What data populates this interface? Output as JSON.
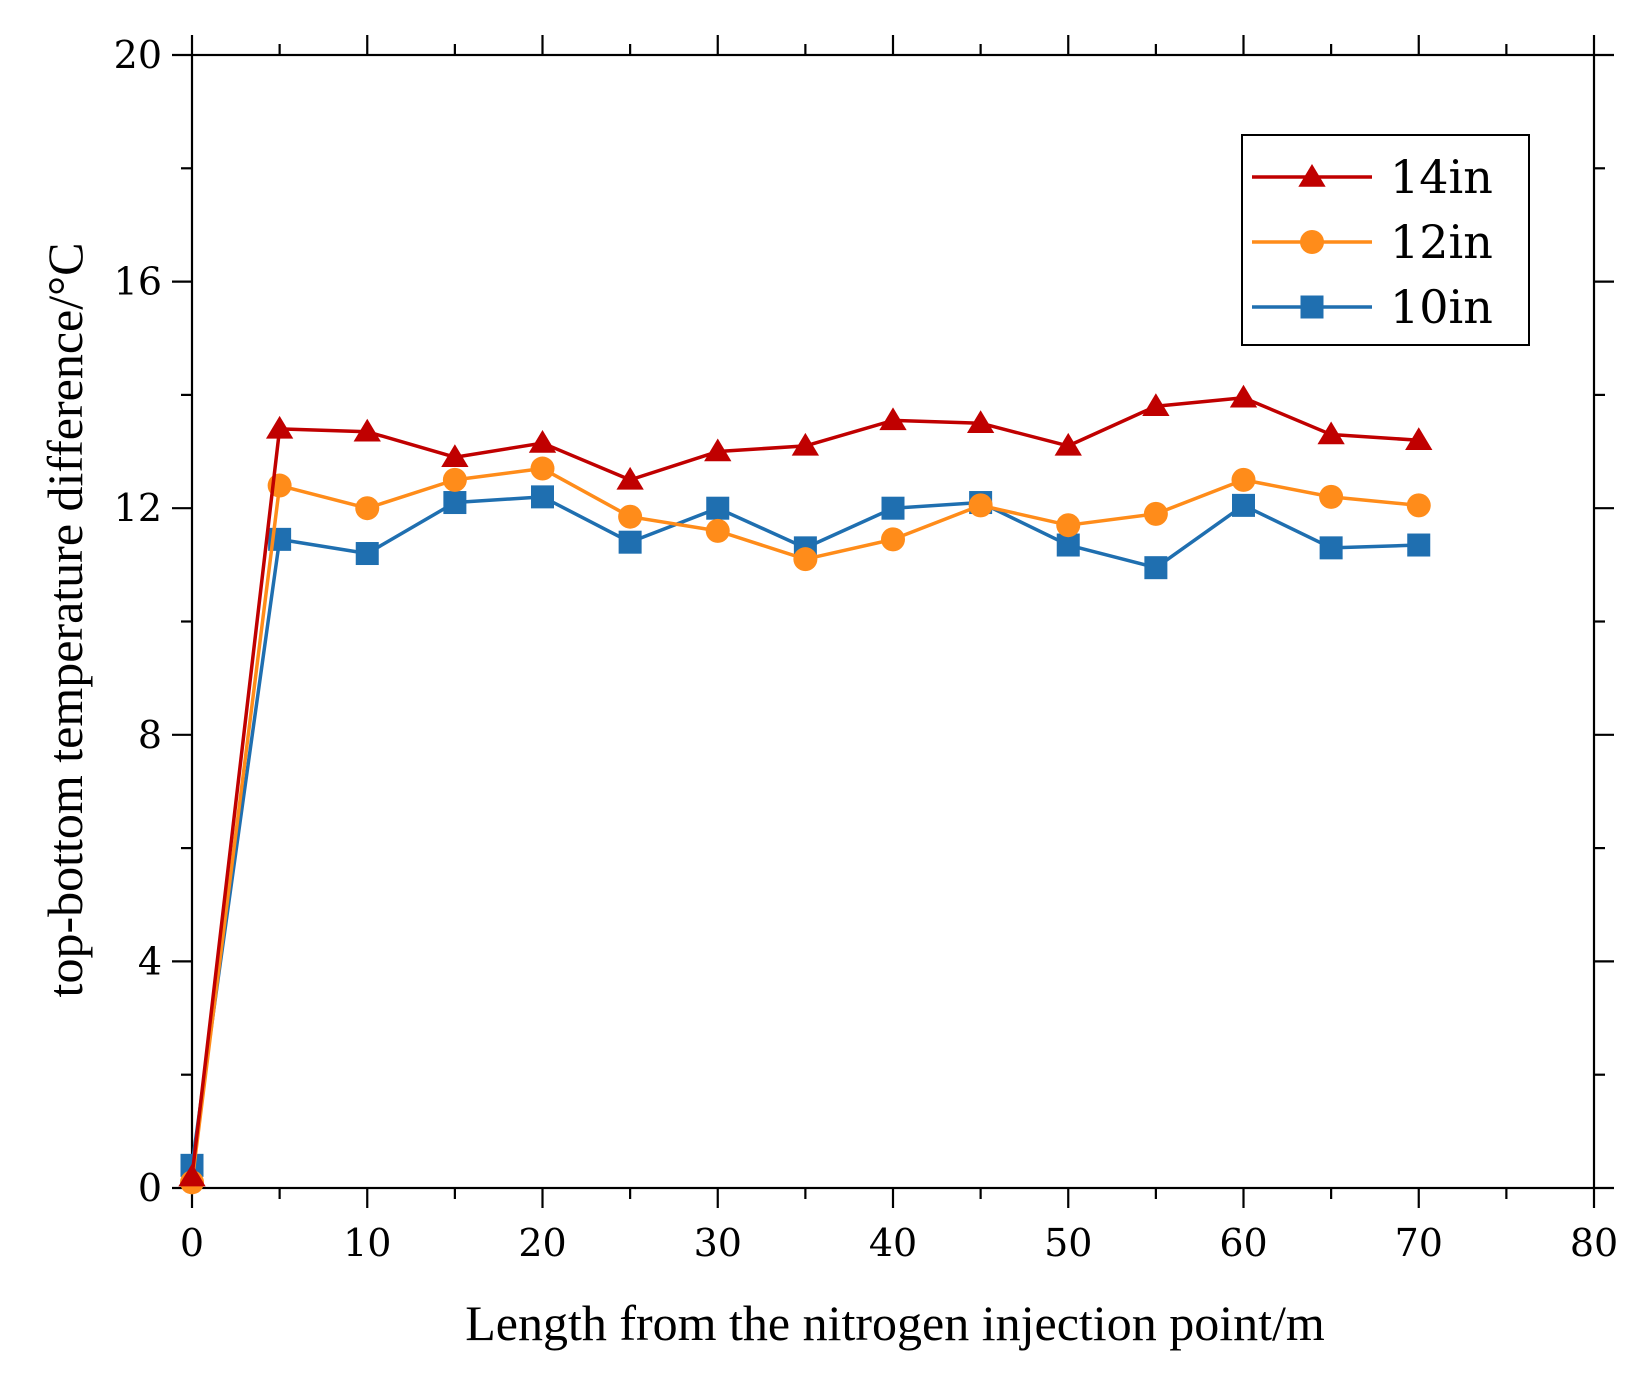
{
  "chart_data": {
    "type": "line",
    "title": "",
    "xlabel": "Length from the nitrogen injection point/m",
    "ylabel": "top-bottom temperature difference/°C",
    "xlim": [
      0,
      80
    ],
    "ylim": [
      0,
      20
    ],
    "xticks": [
      0,
      10,
      20,
      30,
      40,
      50,
      60,
      70,
      80
    ],
    "yticks": [
      0,
      4,
      8,
      12,
      16,
      20
    ],
    "xtick_labels": [
      "0",
      "10",
      "20",
      "30",
      "40",
      "50",
      "60",
      "70",
      "80"
    ],
    "ytick_labels": [
      "0",
      "4",
      "8",
      "12",
      "16",
      "20"
    ],
    "grid": false,
    "legend_position": "top-right",
    "x": [
      0,
      5,
      10,
      15,
      20,
      25,
      30,
      35,
      40,
      45,
      50,
      55,
      60,
      65,
      70
    ],
    "series": [
      {
        "name": "14in",
        "color": "#c00000",
        "marker": "triangle",
        "values": [
          0.2,
          13.4,
          13.35,
          12.9,
          13.15,
          12.5,
          13.0,
          13.1,
          13.55,
          13.5,
          13.1,
          13.8,
          13.95,
          13.3,
          13.2
        ]
      },
      {
        "name": "12in",
        "color": "#ff8c1a",
        "marker": "circle",
        "values": [
          0.1,
          12.4,
          12.0,
          12.5,
          12.7,
          11.85,
          11.6,
          11.1,
          11.45,
          12.05,
          11.7,
          11.9,
          12.5,
          12.2,
          12.05
        ]
      },
      {
        "name": "10in",
        "color": "#1f6fb0",
        "marker": "square",
        "values": [
          0.4,
          11.45,
          11.2,
          12.1,
          12.2,
          11.4,
          12.0,
          11.3,
          12.0,
          12.1,
          11.35,
          10.95,
          12.05,
          11.3,
          11.35
        ]
      }
    ]
  }
}
